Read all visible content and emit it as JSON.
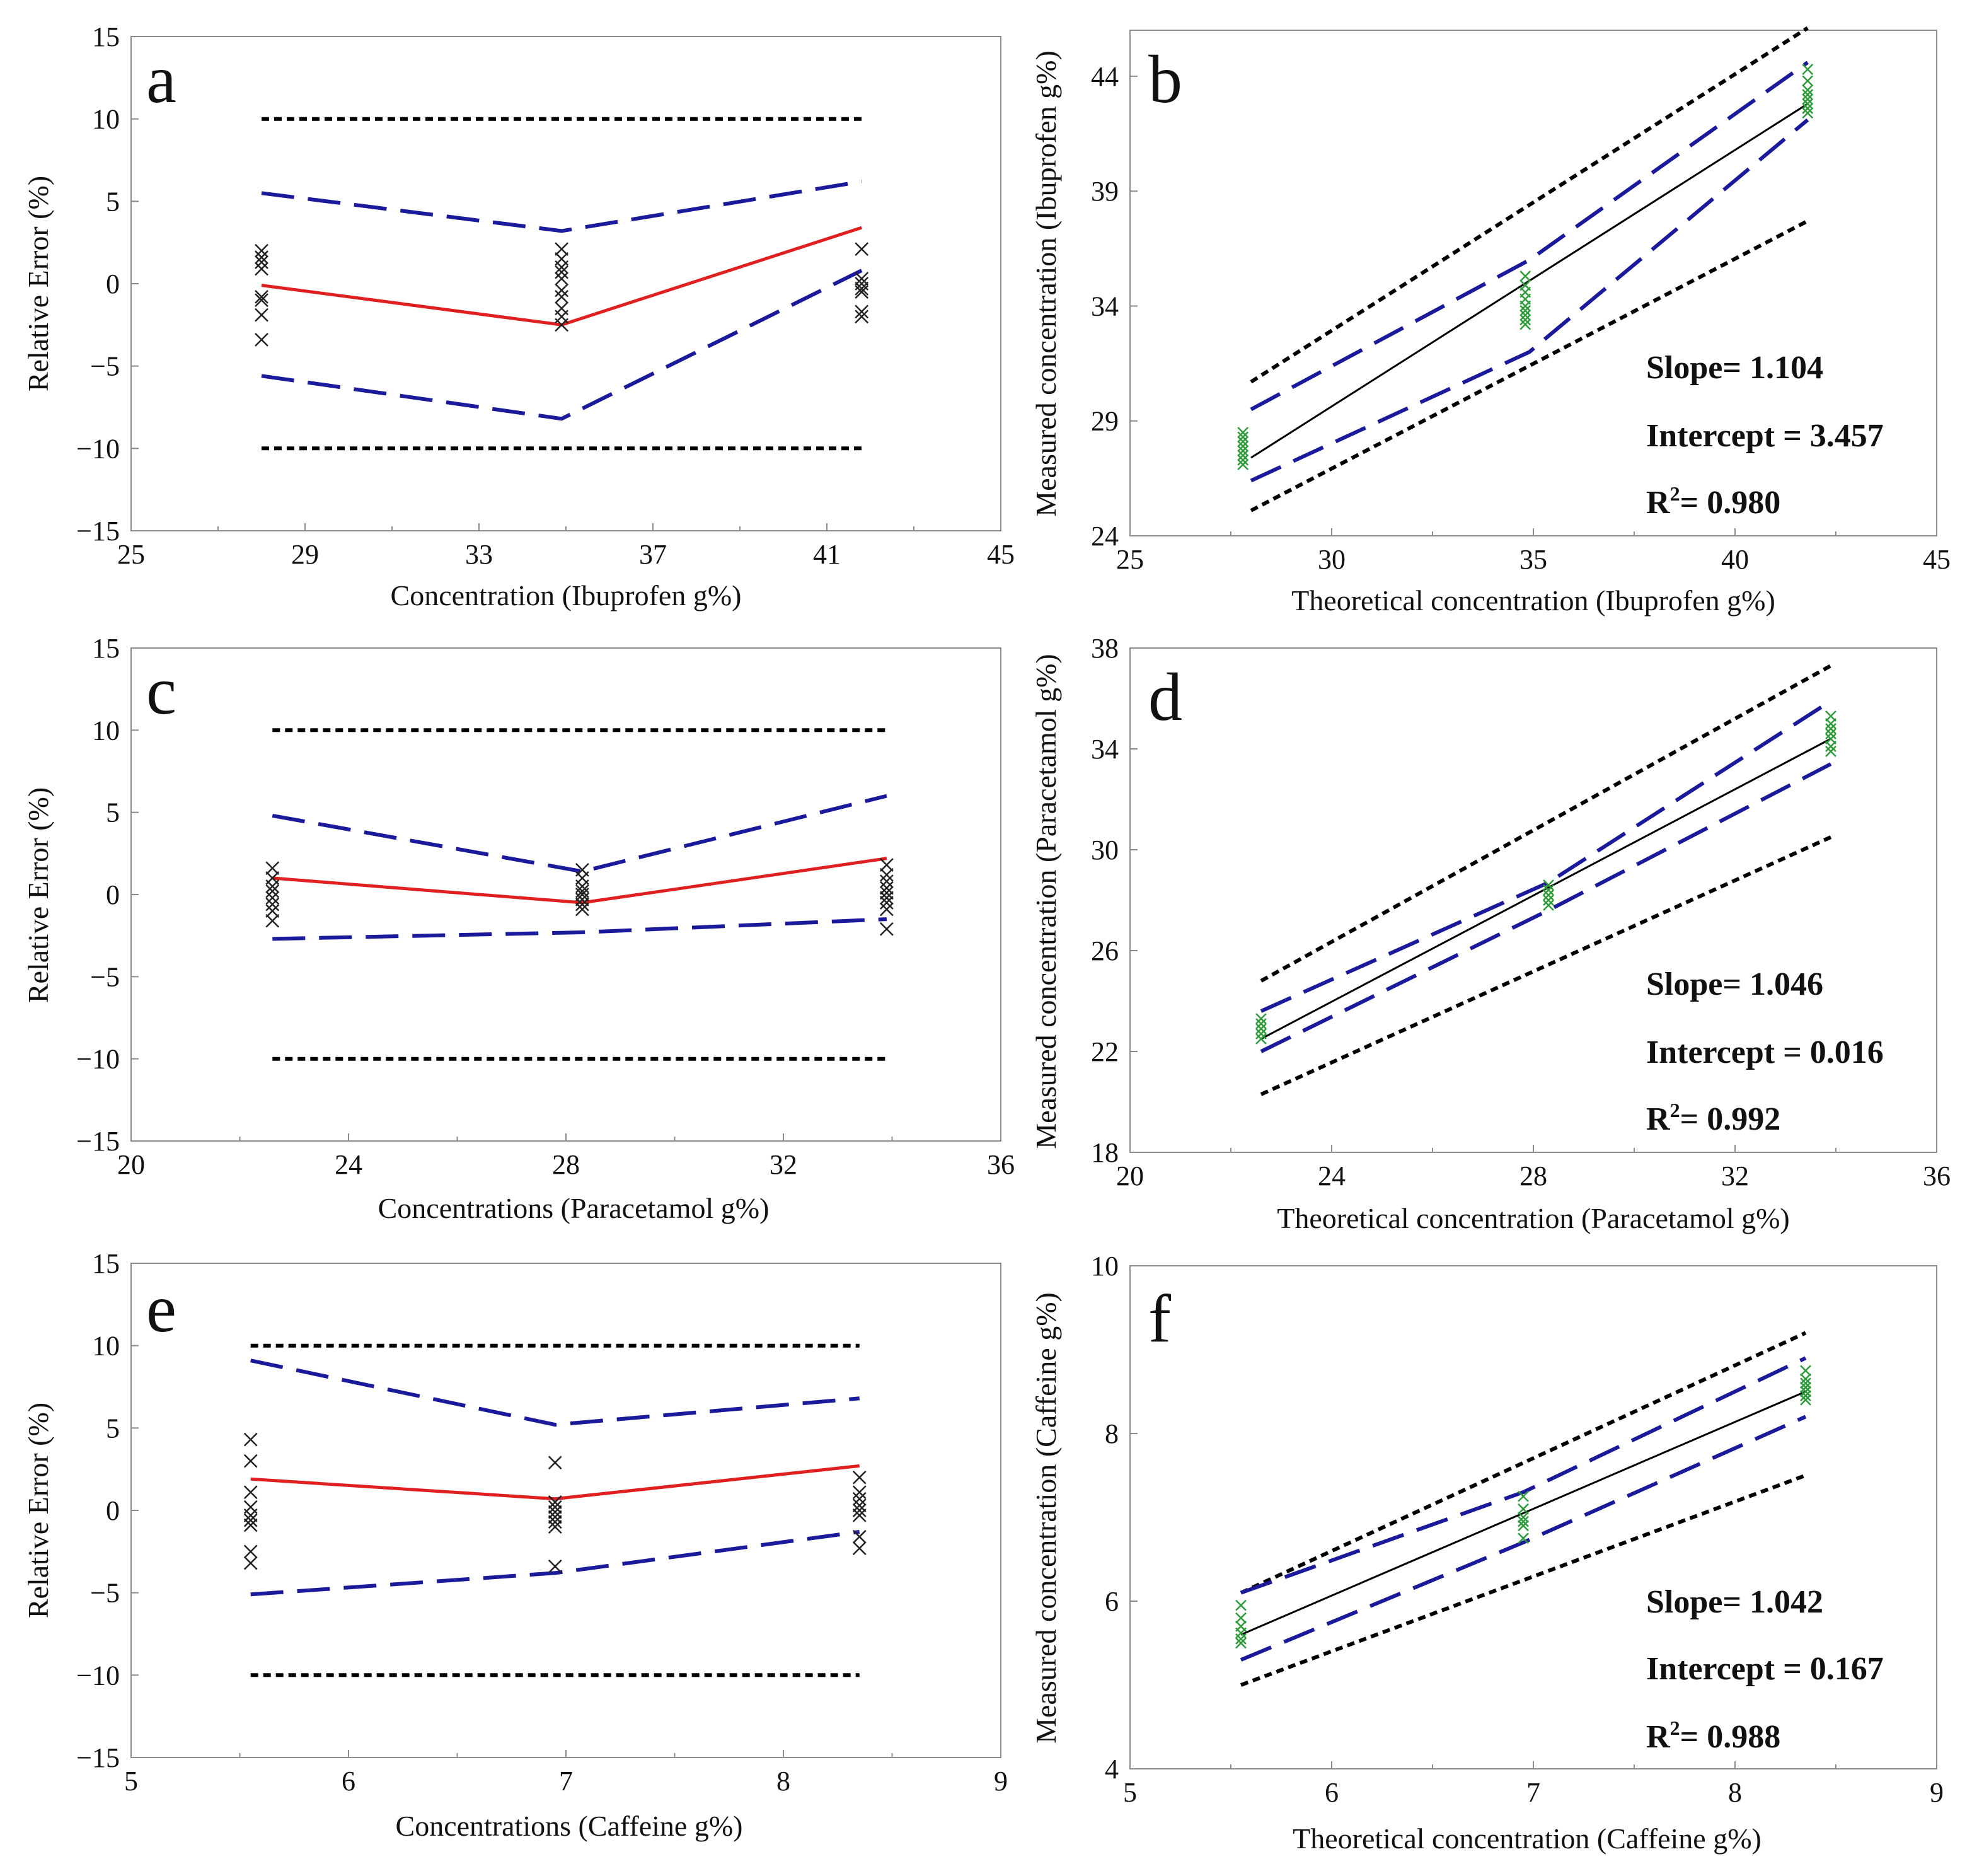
{
  "figure": {
    "colors": {
      "limit": "#000000",
      "ci": "#1a1a9a",
      "mean_error": "#e02020",
      "regression": "#000000",
      "points_a": "#222222",
      "points_b": "#2e9b3a"
    }
  },
  "chart_data": [
    {
      "panel": "a",
      "type": "line",
      "title": "",
      "xlabel": "Concentration (Ibuprofen g%)",
      "ylabel": "Relative Error (%)",
      "xlim": [
        25,
        45
      ],
      "ylim": [
        -15,
        15
      ],
      "xticks": [
        25,
        29,
        33,
        37,
        41,
        45
      ],
      "yticks": [
        -15,
        -10,
        -5,
        0,
        5,
        10,
        15
      ],
      "grid": false,
      "series": [
        {
          "name": "acceptance limit upper",
          "style": "dotted",
          "x": [
            28,
            41.8
          ],
          "y": [
            10,
            10
          ]
        },
        {
          "name": "acceptance limit lower",
          "style": "dotted",
          "x": [
            28,
            41.8
          ],
          "y": [
            -10,
            -10
          ]
        },
        {
          "name": "tolerance interval upper",
          "style": "dashed",
          "x": [
            28,
            34.9,
            41.8
          ],
          "y": [
            5.5,
            3.2,
            6.2
          ]
        },
        {
          "name": "tolerance interval lower",
          "style": "dashed",
          "x": [
            28,
            34.9,
            41.8
          ],
          "y": [
            -5.6,
            -8.2,
            0.8
          ]
        },
        {
          "name": "relative bias",
          "style": "solid-red",
          "x": [
            28,
            34.9,
            41.8
          ],
          "y": [
            -0.1,
            -2.5,
            3.4
          ]
        }
      ],
      "points": [
        {
          "x": 28,
          "y": [
            2.0,
            1.6,
            1.3,
            0.9,
            -0.8,
            -1.0,
            -1.9,
            -3.4
          ]
        },
        {
          "x": 34.9,
          "y": [
            2.1,
            1.5,
            1.0,
            0.7,
            0.3,
            -0.4,
            -0.8,
            -1.5,
            -2.0,
            -2.5
          ]
        },
        {
          "x": 41.8,
          "y": [
            2.1,
            0.3,
            0.0,
            -0.3,
            -0.5,
            -1.7,
            -2.0
          ]
        }
      ]
    },
    {
      "panel": "b",
      "type": "scatter",
      "title": "",
      "xlabel": "Theoretical concentration (Ibuprofen g%)",
      "ylabel": "Measured concentration (Ibuprofen g%)",
      "xlim": [
        25,
        45
      ],
      "ylim": [
        24,
        46
      ],
      "xticks": [
        25,
        30,
        35,
        40,
        45
      ],
      "yticks": [
        24,
        29,
        34,
        39,
        44
      ],
      "grid": false,
      "series": [
        {
          "name": "upper acceptance limit",
          "style": "dotted",
          "x": [
            28,
            41.8
          ],
          "y": [
            30.7,
            46.1
          ]
        },
        {
          "name": "lower acceptance limit",
          "style": "dotted",
          "x": [
            28,
            41.8
          ],
          "y": [
            25.1,
            37.7
          ]
        },
        {
          "name": "upper tolerance limit",
          "style": "dashed",
          "x": [
            28,
            34.9,
            41.8
          ],
          "y": [
            29.5,
            36.0,
            44.6
          ]
        },
        {
          "name": "lower tolerance limit",
          "style": "dashed",
          "x": [
            28,
            34.9,
            41.8
          ],
          "y": [
            26.4,
            32.0,
            42.1
          ]
        },
        {
          "name": "regression line",
          "style": "solid-black",
          "x": [
            28,
            41.8
          ],
          "y": [
            27.4,
            42.8
          ]
        }
      ],
      "points": [
        {
          "x": 27.8,
          "y": [
            28.5,
            28.3,
            28.1,
            27.9,
            27.7,
            27.5,
            27.3,
            27.1
          ]
        },
        {
          "x": 34.8,
          "y": [
            35.3,
            34.9,
            34.6,
            34.3,
            34.0,
            33.8,
            33.6,
            33.4,
            33.2
          ]
        },
        {
          "x": 41.8,
          "y": [
            44.3,
            43.8,
            43.4,
            43.2,
            43.0,
            42.8,
            42.6,
            42.4
          ]
        }
      ],
      "stats": {
        "slope": "Slope= 1.104",
        "intercept": "Intercept = 3.457",
        "r2_label": "R",
        "r2_sup": "2",
        "r2_value": "= 0.980"
      }
    },
    {
      "panel": "c",
      "type": "line",
      "title": "",
      "xlabel": "Concentrations (Paracetamol g%)",
      "ylabel": "Relative Error (%)",
      "xlim": [
        20,
        36
      ],
      "ylim": [
        -15,
        15
      ],
      "xticks": [
        20,
        24,
        28,
        32,
        36
      ],
      "yticks": [
        -15,
        -10,
        -5,
        0,
        5,
        10,
        15
      ],
      "grid": false,
      "series": [
        {
          "name": "acceptance limit upper",
          "style": "dotted",
          "x": [
            22.6,
            33.9
          ],
          "y": [
            10,
            10
          ]
        },
        {
          "name": "acceptance limit lower",
          "style": "dotted",
          "x": [
            22.6,
            33.9
          ],
          "y": [
            -10,
            -10
          ]
        },
        {
          "name": "tolerance interval upper",
          "style": "dashed",
          "x": [
            22.6,
            28.3,
            33.9
          ],
          "y": [
            4.8,
            1.4,
            6.0
          ]
        },
        {
          "name": "tolerance interval lower",
          "style": "dashed",
          "x": [
            22.6,
            28.3,
            33.9
          ],
          "y": [
            -2.7,
            -2.3,
            -1.5
          ]
        },
        {
          "name": "relative bias",
          "style": "solid-red",
          "x": [
            22.6,
            28.3,
            33.9
          ],
          "y": [
            1.0,
            -0.5,
            2.2
          ]
        }
      ],
      "points": [
        {
          "x": 22.6,
          "y": [
            1.6,
            1.0,
            0.5,
            0.2,
            -0.2,
            -0.6,
            -1.0,
            -1.6
          ]
        },
        {
          "x": 28.3,
          "y": [
            1.5,
            1.0,
            0.5,
            0.2,
            0.0,
            -0.3,
            -0.6,
            -0.9
          ]
        },
        {
          "x": 33.9,
          "y": [
            1.8,
            1.2,
            0.8,
            0.4,
            0.1,
            -0.2,
            -0.5,
            -0.9,
            -2.1
          ]
        }
      ]
    },
    {
      "panel": "d",
      "type": "scatter",
      "title": "",
      "xlabel": "Theoretical concentration (Paracetamol g%)",
      "ylabel": "Measured concentration (Paracetamol g%)",
      "xlim": [
        20,
        36
      ],
      "ylim": [
        18,
        38
      ],
      "xticks": [
        20,
        24,
        28,
        32,
        36
      ],
      "yticks": [
        18,
        22,
        26,
        30,
        34,
        38
      ],
      "grid": false,
      "series": [
        {
          "name": "upper acceptance limit",
          "style": "dotted",
          "x": [
            22.6,
            33.9
          ],
          "y": [
            24.8,
            37.3
          ]
        },
        {
          "name": "lower acceptance limit",
          "style": "dotted",
          "x": [
            22.6,
            33.9
          ],
          "y": [
            20.3,
            30.5
          ]
        },
        {
          "name": "upper tolerance limit",
          "style": "dashed",
          "x": [
            22.6,
            28.3,
            33.9
          ],
          "y": [
            23.6,
            28.7,
            35.9
          ]
        },
        {
          "name": "lower tolerance limit",
          "style": "dashed",
          "x": [
            22.6,
            28.3,
            33.9
          ],
          "y": [
            22.0,
            27.6,
            33.4
          ]
        },
        {
          "name": "regression line",
          "style": "solid-black",
          "x": [
            22.6,
            33.9
          ],
          "y": [
            22.5,
            34.4
          ]
        }
      ],
      "points": [
        {
          "x": 22.6,
          "y": [
            23.3,
            23.1,
            22.9,
            22.7,
            22.5
          ]
        },
        {
          "x": 28.3,
          "y": [
            28.6,
            28.4,
            28.2,
            28.0,
            27.8
          ]
        },
        {
          "x": 33.9,
          "y": [
            35.3,
            35.0,
            34.8,
            34.6,
            34.4,
            34.1,
            33.9
          ]
        }
      ],
      "stats": {
        "slope": "Slope= 1.046",
        "intercept": "Intercept = 0.016",
        "r2_label": "R",
        "r2_sup": "2",
        "r2_value": "= 0.992"
      }
    },
    {
      "panel": "e",
      "type": "line",
      "title": "",
      "xlabel": "Concentrations (Caffeine g%)",
      "ylabel": "Relative Error (%)",
      "xlim": [
        5,
        9
      ],
      "ylim": [
        -15,
        15
      ],
      "xticks": [
        5,
        6,
        7,
        8,
        9
      ],
      "yticks": [
        -15,
        -10,
        -5,
        0,
        5,
        10,
        15
      ],
      "grid": false,
      "series": [
        {
          "name": "acceptance limit upper",
          "style": "dotted",
          "x": [
            5.55,
            8.35
          ],
          "y": [
            10,
            10
          ]
        },
        {
          "name": "acceptance limit lower",
          "style": "dotted",
          "x": [
            5.55,
            8.35
          ],
          "y": [
            -10,
            -10
          ]
        },
        {
          "name": "tolerance interval upper",
          "style": "dashed",
          "x": [
            5.55,
            6.95,
            8.35
          ],
          "y": [
            9.1,
            5.2,
            6.8
          ]
        },
        {
          "name": "tolerance interval lower",
          "style": "dashed",
          "x": [
            5.55,
            6.95,
            8.35
          ],
          "y": [
            -5.1,
            -3.8,
            -1.3
          ]
        },
        {
          "name": "relative bias",
          "style": "solid-red",
          "x": [
            5.55,
            6.95,
            8.35
          ],
          "y": [
            1.9,
            0.7,
            2.7
          ]
        }
      ],
      "points": [
        {
          "x": 5.55,
          "y": [
            4.3,
            3.0,
            1.1,
            0.2,
            -0.3,
            -0.6,
            -0.9,
            -2.5,
            -3.2
          ]
        },
        {
          "x": 6.95,
          "y": [
            2.9,
            0.5,
            0.2,
            -0.1,
            -0.4,
            -0.7,
            -1.0,
            -3.4
          ]
        },
        {
          "x": 8.35,
          "y": [
            2.0,
            1.1,
            0.7,
            0.3,
            0.0,
            -0.3,
            -1.6,
            -2.3
          ]
        }
      ]
    },
    {
      "panel": "f",
      "type": "scatter",
      "title": "",
      "xlabel": "Theoretical concentration (Caffeine g%)",
      "ylabel": "Measured concentration (Caffeine g%)",
      "xlim": [
        5,
        9
      ],
      "ylim": [
        4,
        10
      ],
      "xticks": [
        5,
        6,
        7,
        8,
        9
      ],
      "yticks": [
        4,
        6,
        8,
        10
      ],
      "grid": false,
      "series": [
        {
          "name": "upper acceptance limit",
          "style": "dotted",
          "x": [
            5.55,
            8.35
          ],
          "y": [
            6.1,
            9.2
          ]
        },
        {
          "name": "lower acceptance limit",
          "style": "dotted",
          "x": [
            5.55,
            8.35
          ],
          "y": [
            5.0,
            7.5
          ]
        },
        {
          "name": "upper tolerance limit",
          "style": "dashed",
          "x": [
            5.55,
            6.95,
            8.35
          ],
          "y": [
            6.1,
            7.3,
            8.9
          ]
        },
        {
          "name": "lower tolerance limit",
          "style": "dashed",
          "x": [
            5.55,
            6.95,
            8.35
          ],
          "y": [
            5.3,
            6.7,
            8.2
          ]
        },
        {
          "name": "regression line",
          "style": "solid-black",
          "x": [
            5.55,
            8.35
          ],
          "y": [
            5.6,
            8.5
          ]
        }
      ],
      "points": [
        {
          "x": 5.55,
          "y": [
            5.95,
            5.8,
            5.7,
            5.62,
            5.55,
            5.5
          ]
        },
        {
          "x": 6.95,
          "y": [
            7.25,
            7.1,
            7.0,
            6.95,
            6.9,
            6.75
          ]
        },
        {
          "x": 8.35,
          "y": [
            8.75,
            8.65,
            8.6,
            8.55,
            8.5,
            8.45,
            8.4
          ]
        }
      ],
      "stats": {
        "slope": "Slope= 1.042",
        "intercept": "Intercept = 0.167",
        "r2_label": "R",
        "r2_sup": "2",
        "r2_value": "= 0.988"
      }
    }
  ]
}
